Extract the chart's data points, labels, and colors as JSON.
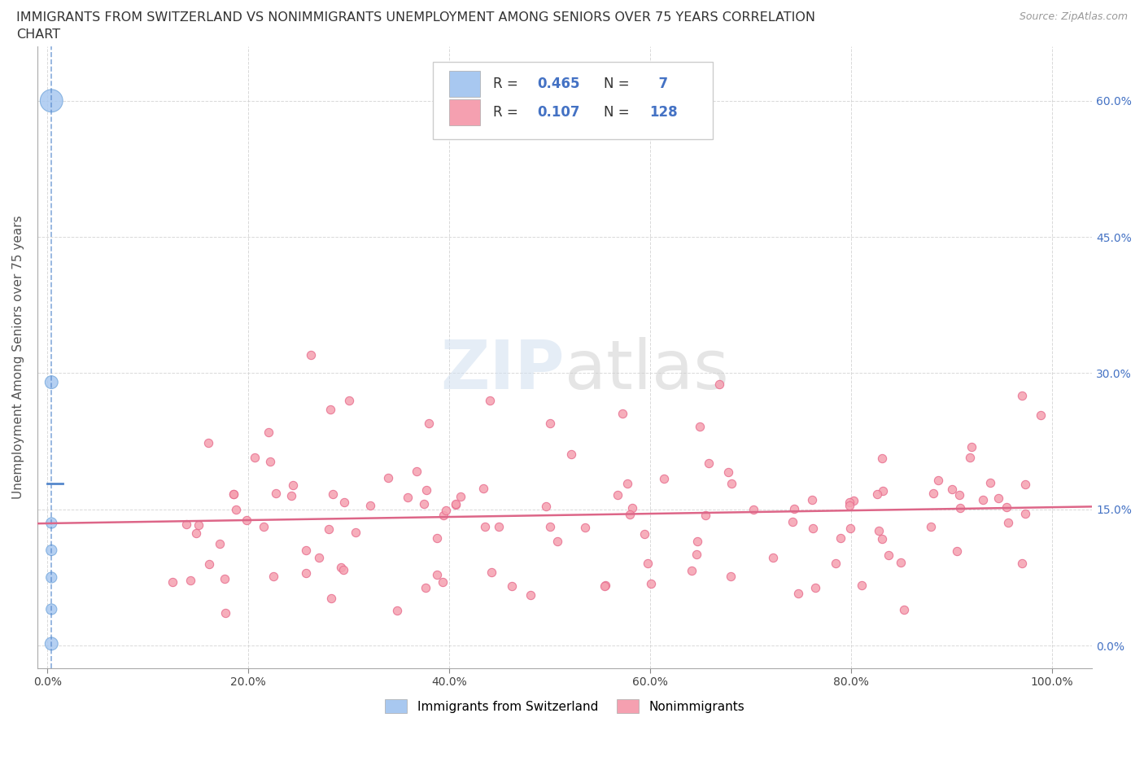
{
  "title_line1": "IMMIGRANTS FROM SWITZERLAND VS NONIMMIGRANTS UNEMPLOYMENT AMONG SENIORS OVER 75 YEARS CORRELATION",
  "title_line2": "CHART",
  "source": "Source: ZipAtlas.com",
  "ylabel": "Unemployment Among Seniors over 75 years",
  "xlim": [
    -0.01,
    1.04
  ],
  "ylim": [
    -0.025,
    0.66
  ],
  "xticks": [
    0.0,
    0.2,
    0.4,
    0.6,
    0.8,
    1.0
  ],
  "xticklabels": [
    "0.0%",
    "20.0%",
    "40.0%",
    "60.0%",
    "80.0%",
    "100.0%"
  ],
  "yticks": [
    0.0,
    0.15,
    0.3,
    0.45,
    0.6
  ],
  "yticklabels_right": [
    "0.0%",
    "15.0%",
    "30.0%",
    "45.0%",
    "60.0%"
  ],
  "grid_color": "#d0d0d0",
  "background_color": "#ffffff",
  "swiss_color": "#a8c8f0",
  "swiss_edge_color": "#7aabde",
  "nonimm_color": "#f5a0b0",
  "nonimm_edge_color": "#e87090",
  "swiss_R": 0.465,
  "swiss_N": 7,
  "nonimm_R": 0.107,
  "nonimm_N": 128,
  "legend_label_swiss": "Immigrants from Switzerland",
  "legend_label_nonimm": "Nonimmigrants",
  "watermark_zip": "ZIP",
  "watermark_atlas": "atlas",
  "swiss_line_color": "#5588cc",
  "nonimm_line_color": "#dd6688",
  "title_color": "#333333",
  "source_color": "#999999",
  "right_tick_color": "#4472c4",
  "legend_R_color": "#333333",
  "legend_N_color": "#333333",
  "legend_val_color": "#4472c4"
}
